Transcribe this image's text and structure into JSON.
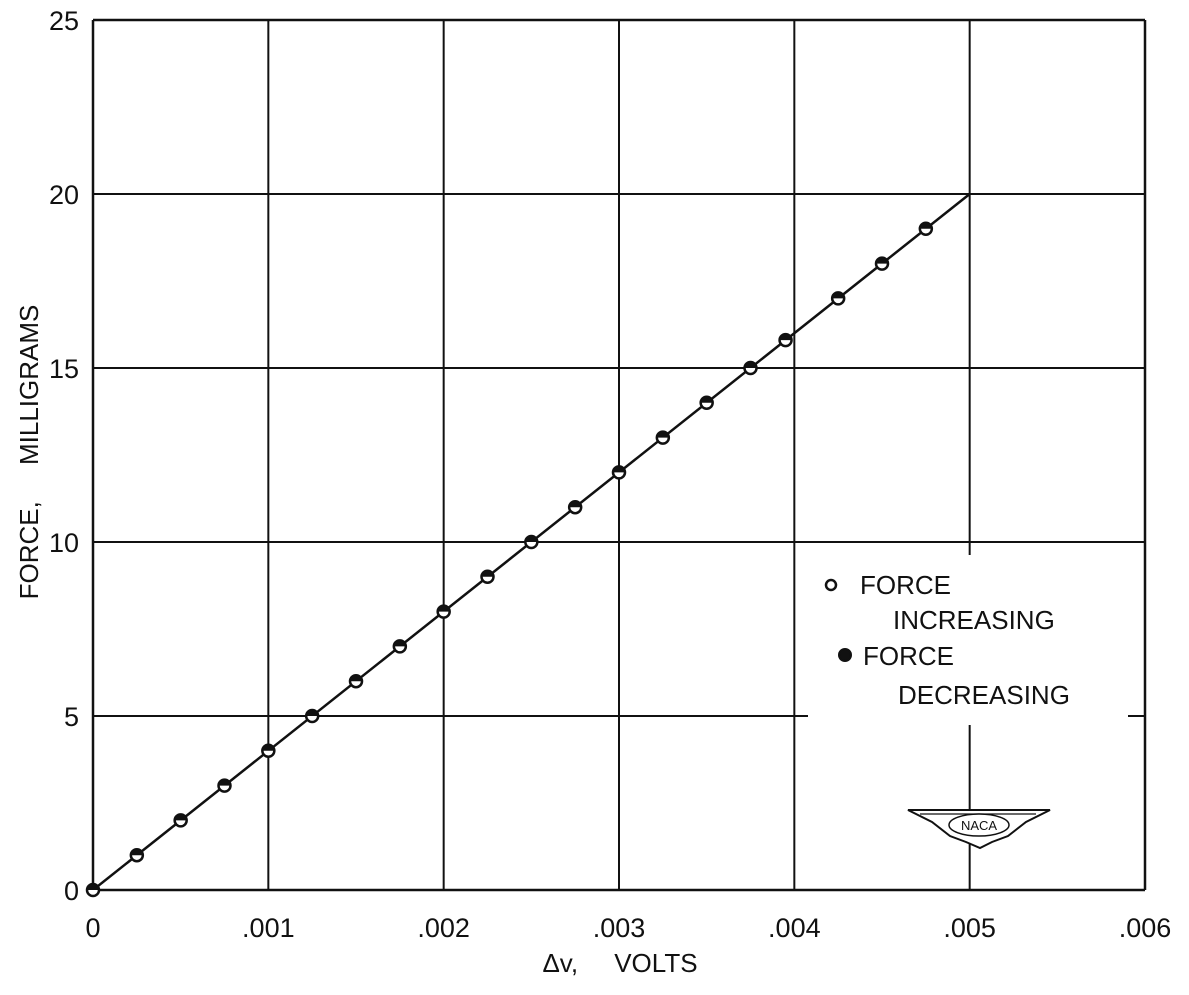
{
  "chart_data": {
    "type": "scatter",
    "xlabel": "Δv,     VOLTS",
    "ylabel": "FORCE,     MILLIGRAMS",
    "xlim": [
      0,
      0.006
    ],
    "ylim": [
      0,
      25
    ],
    "x_ticks": [
      0,
      0.001,
      0.002,
      0.003,
      0.004,
      0.005,
      0.006
    ],
    "x_tick_labels": [
      "0",
      ".001",
      ".002",
      ".003",
      ".004",
      ".005",
      ".006"
    ],
    "y_ticks": [
      0,
      5,
      10,
      15,
      20,
      25
    ],
    "y_tick_labels": [
      "0",
      "5",
      "10",
      "15",
      "20",
      "25"
    ],
    "grid": true,
    "legend_position": "right",
    "series": [
      {
        "name": "FORCE INCREASING",
        "marker": "open-circle",
        "x": [
          0,
          0.00025,
          0.0005,
          0.00075,
          0.001,
          0.00125,
          0.0015,
          0.00175,
          0.002,
          0.00225,
          0.0025,
          0.00275,
          0.003,
          0.00325,
          0.0035,
          0.00375,
          0.00395,
          0.00425,
          0.0045,
          0.00475
        ],
        "y": [
          0,
          1,
          2,
          3,
          4,
          5,
          6,
          7,
          8,
          9,
          10,
          11,
          12,
          13,
          14,
          15,
          15.8,
          17,
          18,
          19
        ]
      },
      {
        "name": "FORCE DECREASING",
        "marker": "filled-circle",
        "x": [
          0,
          0.00025,
          0.0005,
          0.00075,
          0.001,
          0.00125,
          0.0015,
          0.00175,
          0.002,
          0.00225,
          0.0025,
          0.00275,
          0.003,
          0.00325,
          0.0035,
          0.00375,
          0.00395,
          0.00425,
          0.0045,
          0.00475
        ],
        "y": [
          0,
          1,
          2,
          3,
          4,
          5,
          6,
          7,
          8,
          9,
          10,
          11,
          12,
          13,
          14,
          15,
          15.8,
          17,
          18,
          19
        ]
      }
    ],
    "fit_line": {
      "x": [
        0,
        0.005
      ],
      "y": [
        0,
        20
      ]
    },
    "legend": {
      "items": [
        {
          "lines": [
            "FORCE",
            "INCREASING"
          ],
          "marker": "open-circle"
        },
        {
          "lines": [
            "FORCE",
            "DECREASING"
          ],
          "marker": "filled-circle"
        }
      ]
    }
  },
  "logo": {
    "text": "NACA"
  }
}
